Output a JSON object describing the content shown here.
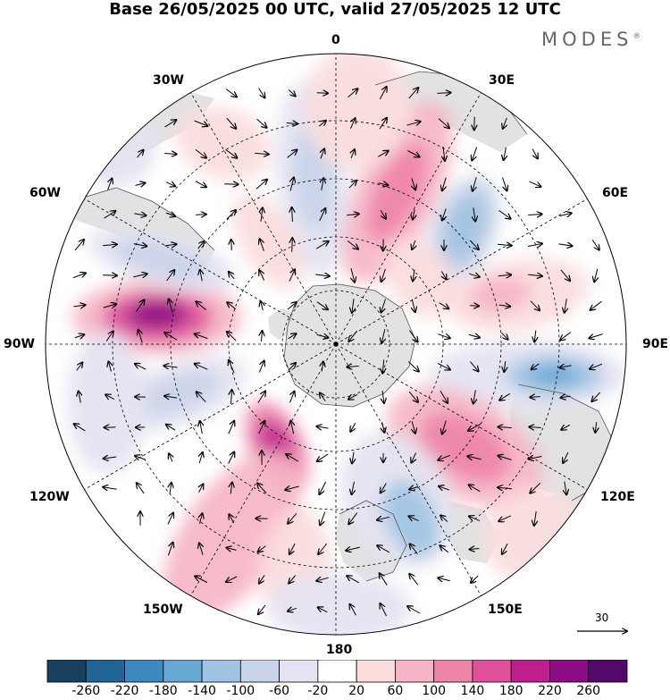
{
  "title": "Base 26/05/2025 00 UTC, valid 27/05/2025 12 UTC",
  "logo": "MODES",
  "logo_mark": "®",
  "longitude_labels": {
    "lon_0": "0",
    "lon_30e": "30E",
    "lon_60e": "60E",
    "lon_90e": "90E",
    "lon_120e": "120E",
    "lon_150e": "150E",
    "lon_180": "180",
    "lon_150w": "150W",
    "lon_120w": "120W",
    "lon_90w": "90W",
    "lon_60w": "60W",
    "lon_30w": "30W"
  },
  "reference_vector": {
    "value": "30"
  },
  "colorbar": {
    "tick_labels": [
      "-260",
      "-220",
      "-180",
      "-140",
      "-100",
      "-60",
      "-20",
      "20",
      "60",
      "100",
      "140",
      "180",
      "220",
      "260"
    ],
    "colors": [
      "#16405e",
      "#1f6494",
      "#3d88bf",
      "#68a8d5",
      "#a0c3e3",
      "#c9d3e9",
      "#e4e3f1",
      "#ffffff",
      "#fbdcdd",
      "#f6b5c6",
      "#ef84ab",
      "#e0519b",
      "#c01e8f",
      "#8c0c84",
      "#52096a"
    ]
  },
  "colors": {
    "land": "#e2e2e2",
    "ocean": "#ffffff",
    "graticule": "#000000"
  }
}
